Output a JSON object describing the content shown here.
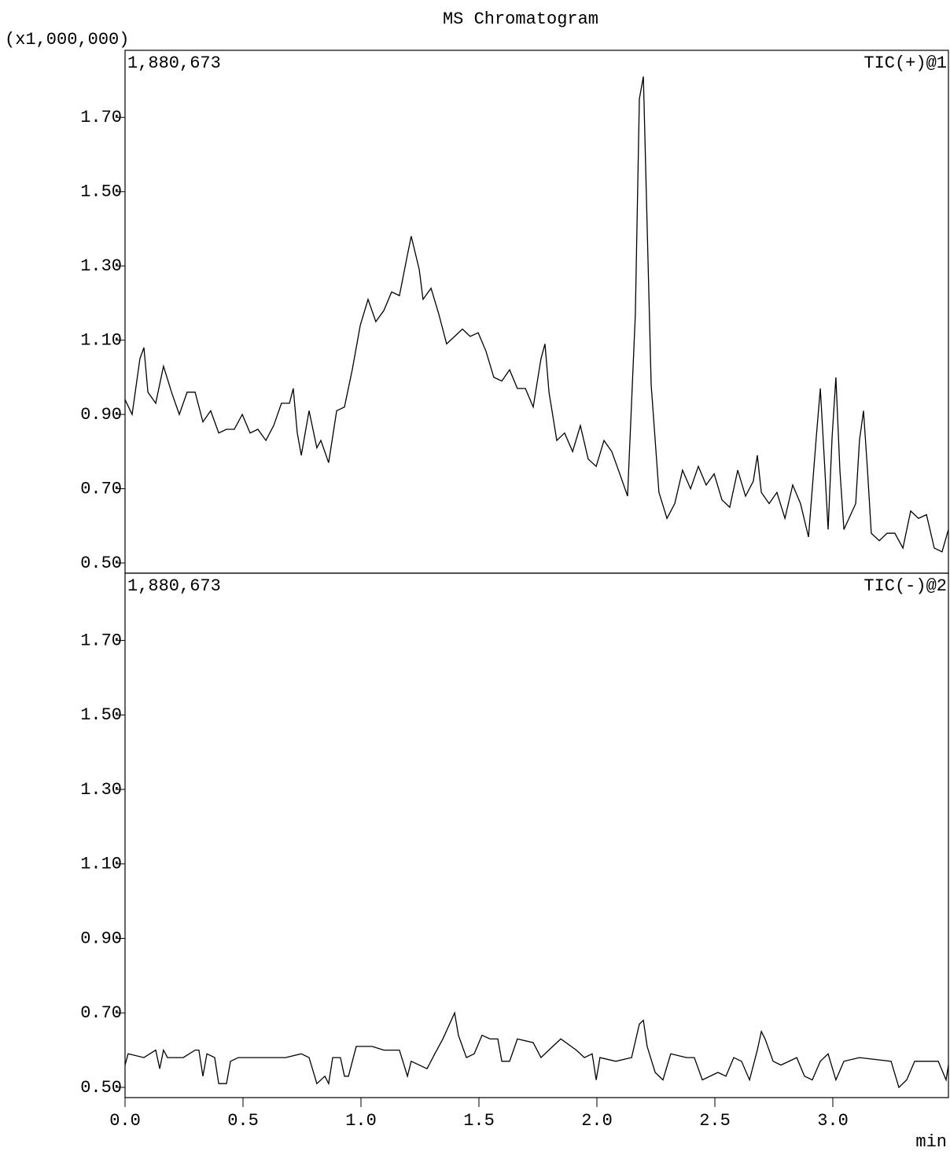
{
  "chart_data": [
    {
      "type": "line",
      "title": "MS  Chromatogram",
      "y_axis_label": "(x1,000,000)",
      "annotation_left": "1,880,673",
      "annotation_right": "TIC(+)@1",
      "color": "#000000",
      "xlim": [
        0,
        3.49
      ],
      "ylim": [
        0.4725,
        1.880673
      ],
      "yticks": [
        {
          "value": 0.5,
          "label": "0.50"
        },
        {
          "value": 0.7,
          "label": "0.70"
        },
        {
          "value": 0.9,
          "label": "0.90"
        },
        {
          "value": 1.1,
          "label": "1.10"
        },
        {
          "value": 1.3,
          "label": "1.30"
        },
        {
          "value": 1.5,
          "label": "1.50"
        },
        {
          "value": 1.7,
          "label": "1.70"
        }
      ],
      "x": [
        0,
        0.03,
        0.063,
        0.08,
        0.097,
        0.13,
        0.163,
        0.197,
        0.23,
        0.263,
        0.297,
        0.33,
        0.363,
        0.397,
        0.43,
        0.463,
        0.497,
        0.53,
        0.563,
        0.597,
        0.63,
        0.663,
        0.697,
        0.713,
        0.73,
        0.747,
        0.78,
        0.813,
        0.83,
        0.863,
        0.897,
        0.93,
        0.963,
        0.997,
        1.03,
        1.063,
        1.097,
        1.13,
        1.163,
        1.197,
        1.213,
        1.247,
        1.263,
        1.297,
        1.33,
        1.363,
        1.397,
        1.43,
        1.463,
        1.497,
        1.53,
        1.563,
        1.597,
        1.63,
        1.663,
        1.697,
        1.73,
        1.763,
        1.78,
        1.797,
        1.83,
        1.863,
        1.897,
        1.93,
        1.963,
        1.997,
        2.03,
        2.063,
        2.097,
        2.13,
        2.163,
        2.18,
        2.197,
        2.23,
        2.263,
        2.297,
        2.33,
        2.363,
        2.397,
        2.43,
        2.463,
        2.497,
        2.53,
        2.563,
        2.597,
        2.63,
        2.663,
        2.68,
        2.697,
        2.73,
        2.763,
        2.797,
        2.83,
        2.863,
        2.897,
        2.93,
        2.947,
        2.963,
        2.98,
        2.997,
        3.013,
        3.03,
        3.047,
        3.097,
        3.113,
        3.13,
        3.147,
        3.163,
        3.197,
        3.23,
        3.263,
        3.297,
        3.33,
        3.363,
        3.397,
        3.43,
        3.463,
        3.49
      ],
      "values": [
        0.94,
        0.9,
        1.05,
        1.08,
        0.96,
        0.93,
        1.03,
        0.96,
        0.9,
        0.96,
        0.96,
        0.88,
        0.91,
        0.85,
        0.86,
        0.86,
        0.9,
        0.85,
        0.86,
        0.83,
        0.87,
        0.93,
        0.93,
        0.97,
        0.85,
        0.79,
        0.91,
        0.81,
        0.83,
        0.77,
        0.91,
        0.92,
        1.02,
        1.14,
        1.21,
        1.15,
        1.18,
        1.23,
        1.22,
        1.33,
        1.38,
        1.29,
        1.21,
        1.24,
        1.17,
        1.09,
        1.11,
        1.13,
        1.11,
        1.12,
        1.07,
        1.0,
        0.99,
        1.02,
        0.97,
        0.97,
        0.92,
        1.05,
        1.09,
        0.96,
        0.83,
        0.85,
        0.8,
        0.87,
        0.78,
        0.76,
        0.83,
        0.8,
        0.74,
        0.68,
        1.17,
        1.75,
        1.81,
        0.98,
        0.69,
        0.62,
        0.66,
        0.75,
        0.7,
        0.76,
        0.71,
        0.74,
        0.67,
        0.65,
        0.75,
        0.68,
        0.72,
        0.79,
        0.69,
        0.66,
        0.69,
        0.62,
        0.71,
        0.66,
        0.57,
        0.84,
        0.97,
        0.79,
        0.59,
        0.84,
        1.0,
        0.75,
        0.59,
        0.66,
        0.83,
        0.91,
        0.75,
        0.58,
        0.56,
        0.58,
        0.58,
        0.54,
        0.64,
        0.62,
        0.63,
        0.54,
        0.53,
        0.59
      ]
    },
    {
      "type": "line",
      "x_axis_label": "min",
      "annotation_left": "1,880,673",
      "annotation_right": "TIC(-)@2",
      "color": "#000000",
      "xlim": [
        0,
        3.49
      ],
      "ylim": [
        0.4725,
        1.880673
      ],
      "xticks": [
        {
          "value": 0,
          "label": "0.0"
        },
        0.5,
        {
          "value": 1,
          "label": "1.0"
        },
        1.5,
        {
          "value": 2,
          "label": "2.0"
        },
        2.5,
        {
          "value": 3,
          "label": "3.0"
        }
      ],
      "yticks": [
        {
          "value": 0.5,
          "label": "0.50"
        },
        {
          "value": 0.7,
          "label": "0.70"
        },
        {
          "value": 0.9,
          "label": "0.90"
        },
        {
          "value": 1.1,
          "label": "1.10"
        },
        {
          "value": 1.3,
          "label": "1.30"
        },
        {
          "value": 1.5,
          "label": "1.50"
        },
        {
          "value": 1.7,
          "label": "1.70"
        }
      ],
      "x": [
        0,
        0.013,
        0.08,
        0.13,
        0.147,
        0.163,
        0.18,
        0.247,
        0.297,
        0.313,
        0.33,
        0.347,
        0.38,
        0.397,
        0.43,
        0.447,
        0.48,
        0.547,
        0.613,
        0.68,
        0.747,
        0.78,
        0.813,
        0.847,
        0.863,
        0.88,
        0.913,
        0.93,
        0.947,
        0.98,
        1.047,
        1.097,
        1.163,
        1.197,
        1.213,
        1.28,
        1.313,
        1.347,
        1.397,
        1.413,
        1.447,
        1.48,
        1.513,
        1.547,
        1.58,
        1.597,
        1.63,
        1.663,
        1.73,
        1.763,
        1.813,
        1.847,
        1.913,
        1.947,
        1.98,
        1.997,
        2.013,
        2.08,
        2.147,
        2.18,
        2.197,
        2.213,
        2.247,
        2.28,
        2.313,
        2.38,
        2.413,
        2.447,
        2.513,
        2.547,
        2.58,
        2.613,
        2.647,
        2.68,
        2.697,
        2.713,
        2.747,
        2.78,
        2.847,
        2.88,
        2.913,
        2.947,
        2.98,
        3.013,
        3.047,
        3.113,
        3.247,
        3.28,
        3.313,
        3.347,
        3.447,
        3.48,
        3.49
      ],
      "values": [
        0.56,
        0.59,
        0.58,
        0.6,
        0.55,
        0.6,
        0.58,
        0.58,
        0.6,
        0.6,
        0.53,
        0.59,
        0.58,
        0.51,
        0.51,
        0.57,
        0.58,
        0.58,
        0.58,
        0.58,
        0.59,
        0.58,
        0.51,
        0.53,
        0.51,
        0.58,
        0.58,
        0.53,
        0.53,
        0.61,
        0.61,
        0.6,
        0.6,
        0.53,
        0.57,
        0.55,
        0.59,
        0.63,
        0.7,
        0.64,
        0.58,
        0.59,
        0.64,
        0.63,
        0.63,
        0.57,
        0.57,
        0.63,
        0.62,
        0.58,
        0.61,
        0.63,
        0.6,
        0.58,
        0.59,
        0.52,
        0.58,
        0.57,
        0.58,
        0.67,
        0.68,
        0.61,
        0.54,
        0.52,
        0.59,
        0.58,
        0.58,
        0.52,
        0.54,
        0.53,
        0.58,
        0.57,
        0.52,
        0.6,
        0.65,
        0.63,
        0.57,
        0.56,
        0.58,
        0.53,
        0.52,
        0.57,
        0.59,
        0.52,
        0.57,
        0.58,
        0.57,
        0.5,
        0.52,
        0.57,
        0.57,
        0.52,
        0.56
      ]
    }
  ]
}
